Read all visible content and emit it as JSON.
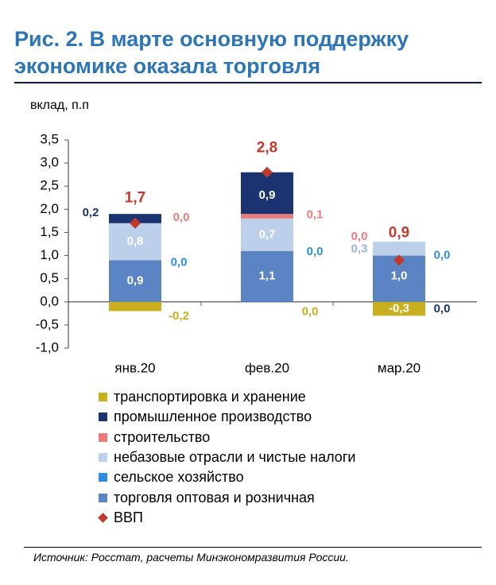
{
  "title": "Рис. 2. В марте основную поддержку экономике оказала торговля",
  "source": "Источник: Росстат, расчеты Минэкономразвития России.",
  "chart_data": {
    "type": "bar",
    "stacked": true,
    "ylabel": "вклад, п.п",
    "ylim": [
      -1.0,
      3.5
    ],
    "yticks": [
      "-1,0",
      "-0,5",
      "0,0",
      "0,5",
      "1,0",
      "1,5",
      "2,0",
      "2,5",
      "3,0",
      "3,5"
    ],
    "ytick_values": [
      -1.0,
      -0.5,
      0.0,
      0.5,
      1.0,
      1.5,
      2.0,
      2.5,
      3.0,
      3.5
    ],
    "categories": [
      "янв.20",
      "фев.20",
      "мар.20"
    ],
    "series": [
      {
        "name": "торговля оптовая и розничная",
        "color": "#5B84C4",
        "values": [
          0.9,
          1.1,
          1.0
        ],
        "labels": [
          "0,9",
          "1,1",
          "1,0"
        ]
      },
      {
        "name": "сельское хозяйство",
        "color": "#2E8DE0",
        "values": [
          0.0,
          0.0,
          0.0
        ],
        "labels": [
          "0,0",
          "0,0",
          "0,0"
        ]
      },
      {
        "name": "небазовые отрасли и чистые налоги",
        "color": "#BDD0EA",
        "values": [
          0.8,
          0.7,
          0.3
        ],
        "labels": [
          "0,8",
          "0,7",
          "0,3"
        ]
      },
      {
        "name": "строительство",
        "color": "#EE7B7B",
        "values": [
          0.0,
          0.1,
          0.0
        ],
        "labels": [
          "0,0",
          "0,1",
          "0,0"
        ]
      },
      {
        "name": "промышленное производство",
        "color": "#1B3370",
        "values": [
          0.2,
          0.9,
          0.0
        ],
        "labels": [
          "0,2",
          "0,9",
          "0,0"
        ]
      },
      {
        "name": "транспортировка и хранение",
        "color": "#C9AE1E",
        "values": [
          -0.2,
          0.0,
          -0.3
        ],
        "labels": [
          "-0,2",
          "0,0",
          "-0,3"
        ]
      }
    ],
    "gdp": {
      "name": "ВВП",
      "color": "#C0392B",
      "values": [
        1.7,
        2.8,
        0.9
      ],
      "labels": [
        "1,7",
        "2,8",
        "0,9"
      ]
    },
    "legend_order": [
      "транспортировка и хранение",
      "промышленное производство",
      "строительство",
      "небазовые отрасли и чистые налоги",
      "сельское хозяйство",
      "торговля оптовая и розничная",
      "ВВП"
    ]
  }
}
